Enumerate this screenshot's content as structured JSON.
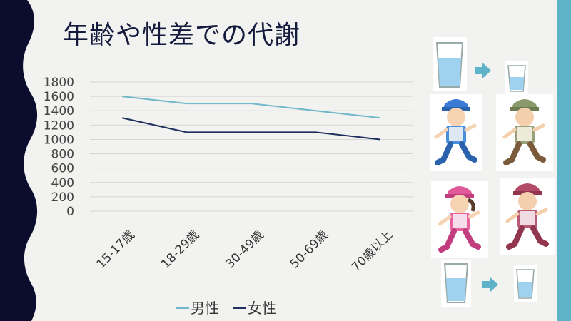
{
  "slide": {
    "title": "年齢や性差での代謝",
    "colors": {
      "dark_navy": "#0c0d2e",
      "accent_teal": "#5fb3c8",
      "background": "#f2f2f0"
    }
  },
  "chart_data": {
    "type": "line",
    "title": "",
    "xlabel": "",
    "ylabel": "",
    "categories": [
      "15-17歳",
      "18-29歳",
      "30-49歳",
      "50-69歳",
      "70歳以上"
    ],
    "series": [
      {
        "name": "男性",
        "color": "#6fb7c9",
        "values": [
          1600,
          1500,
          1500,
          1400,
          1300
        ]
      },
      {
        "name": "女性",
        "color": "#1f2f5e",
        "values": [
          1300,
          1100,
          1100,
          1100,
          1000
        ]
      }
    ],
    "ylim": [
      0,
      1800
    ],
    "yticks": [
      0,
      200,
      400,
      600,
      800,
      1000,
      1200,
      1400,
      1600,
      1800
    ],
    "grid": true,
    "legend_position": "bottom"
  },
  "illustrations": {
    "top_row_icons": [
      "full-glass-icon",
      "arrow-right-icon",
      "small-glass-icon"
    ],
    "runners": [
      "young-man-runner",
      "elderly-man-runner",
      "young-woman-runner",
      "elderly-woman-runner"
    ],
    "bottom_row_icons": [
      "full-glass-icon",
      "arrow-right-icon",
      "small-glass-icon"
    ]
  }
}
